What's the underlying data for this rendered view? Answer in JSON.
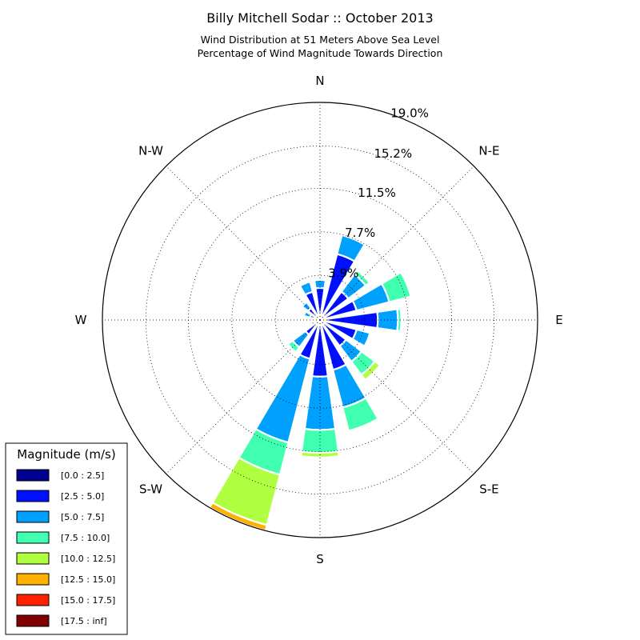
{
  "chart_data": {
    "type": "windrose",
    "title": "Billy Mitchell Sodar :: October 2013",
    "subtitle_lines": [
      "Wind Distribution at 51 Meters Above Sea Level",
      "Percentage of Wind Magnitude Towards Direction"
    ],
    "direction_labels": [
      "N",
      "N-E",
      "E",
      "S-E",
      "S",
      "S-W",
      "W",
      "N-W"
    ],
    "ring_values": [
      3.9,
      7.7,
      11.5,
      15.2,
      19.0
    ],
    "ring_labels": [
      "3.9%",
      "7.7%",
      "11.5%",
      "15.2%",
      "19.0%"
    ],
    "rmax": 19.0,
    "grid": true,
    "legend": {
      "title": "Magnitude (m/s)",
      "placement": "bottom-left",
      "bins": [
        {
          "label": "[0.0 : 2.5]",
          "color": "#00008f"
        },
        {
          "label": "[2.5 : 5.0]",
          "color": "#0010ff"
        },
        {
          "label": "[5.0 : 7.5]",
          "color": "#00a0ff"
        },
        {
          "label": "[7.5 : 10.0]",
          "color": "#40ffb0"
        },
        {
          "label": "[10.0 : 12.5]",
          "color": "#b0ff40"
        },
        {
          "label": "[12.5 : 15.0]",
          "color": "#ffb000"
        },
        {
          "label": "[15.0 : 17.5]",
          "color": "#ff2000"
        },
        {
          "label": "[17.5 : inf]",
          "color": "#800000"
        }
      ]
    },
    "sector_count": 16,
    "sector_width_deg": 16,
    "sectors": [
      {
        "direction_deg": 0.0,
        "cumulative": [
          0.15,
          2.8,
          3.5
        ]
      },
      {
        "direction_deg": 22.5,
        "cumulative": [
          0.15,
          5.95,
          7.65
        ]
      },
      {
        "direction_deg": 45.0,
        "cumulative": [
          0.15,
          3.1,
          5.0,
          5.4
        ]
      },
      {
        "direction_deg": 67.5,
        "cumulative": [
          0.15,
          3.3,
          6.25,
          8.2
        ]
      },
      {
        "direction_deg": 90.0,
        "cumulative": [
          0.15,
          5.05,
          6.8,
          7.1
        ]
      },
      {
        "direction_deg": 112.5,
        "cumulative": [
          0.15,
          3.3,
          4.5
        ]
      },
      {
        "direction_deg": 135.0,
        "cumulative": [
          0.15,
          2.85,
          4.55,
          6.0,
          6.55
        ]
      },
      {
        "direction_deg": 157.5,
        "cumulative": [
          0.15,
          4.5,
          7.9,
          10.0
        ]
      },
      {
        "direction_deg": 180.0,
        "cumulative": [
          0.15,
          4.95,
          9.6,
          11.6,
          12.0
        ]
      },
      {
        "direction_deg": 202.5,
        "cumulative": [
          0.15,
          3.5,
          11.05,
          13.95,
          18.5,
          19.0
        ]
      },
      {
        "direction_deg": 225.0,
        "cumulative": [
          0.15,
          1.6,
          3.0,
          3.5
        ]
      },
      {
        "direction_deg": 247.5,
        "cumulative": [
          0.15,
          0.8
        ]
      },
      {
        "direction_deg": 270.0,
        "cumulative": [
          0.15,
          0.6
        ]
      },
      {
        "direction_deg": 292.5,
        "cumulative": [
          0.15,
          0.9,
          1.45
        ]
      },
      {
        "direction_deg": 315.0,
        "cumulative": [
          0.15,
          1.3,
          1.95
        ]
      },
      {
        "direction_deg": 337.5,
        "cumulative": [
          0.15,
          2.55,
          3.45
        ]
      }
    ]
  }
}
